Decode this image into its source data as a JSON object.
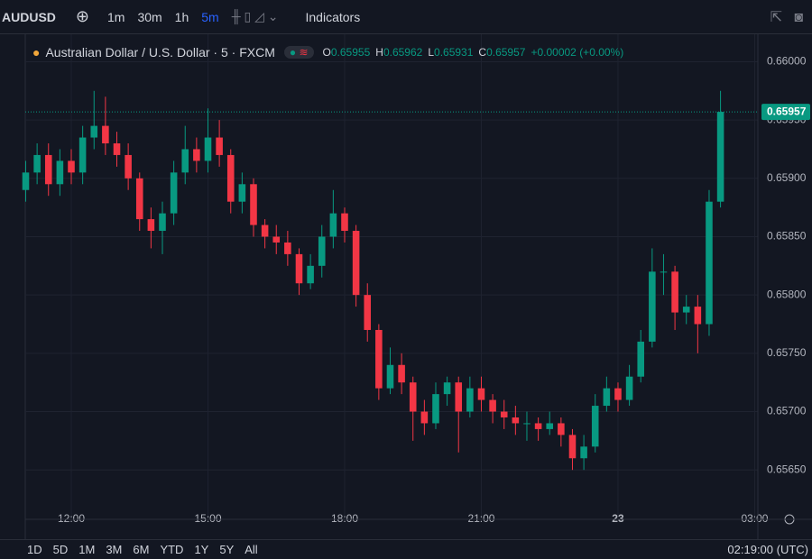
{
  "toolbar": {
    "symbol": "AUDUSD",
    "intervals": [
      "1m",
      "30m",
      "1h",
      "5m"
    ],
    "indicators": "Indicators"
  },
  "chart_data": {
    "type": "candlestick",
    "title": "Australian Dollar / U.S. Dollar · 5 · FXCM",
    "ohlc_legend": [
      {
        "label": "O",
        "value": 0.65955
      },
      {
        "label": "H",
        "value": 0.65962
      },
      {
        "label": "L",
        "value": 0.65931
      },
      {
        "label": "C",
        "value": 0.65957
      }
    ],
    "change": "+0.00002 (+0.00%)",
    "last_price": 0.65957,
    "up_color": "#089981",
    "down_color": "#f23645",
    "grid": true,
    "x": [
      11,
      11.25,
      11.5,
      11.75,
      12,
      12.25,
      12.5,
      12.75,
      13,
      13.25,
      13.5,
      13.75,
      14,
      14.25,
      14.5,
      14.75,
      15,
      15.25,
      15.5,
      15.75,
      16,
      16.25,
      16.5,
      16.75,
      17,
      17.25,
      17.5,
      17.75,
      18,
      18.25,
      18.5,
      18.75,
      19,
      19.25,
      19.5,
      19.75,
      20,
      20.25,
      20.5,
      20.75,
      21,
      21.25,
      21.5,
      21.75,
      22,
      22.25,
      22.5,
      22.75,
      23,
      23.25,
      23.5,
      23.75,
      24,
      24.25,
      24.5,
      24.75,
      25,
      25.25,
      25.5,
      25.75,
      26,
      26.25
    ],
    "open": [
      0.6589,
      0.65905,
      0.6592,
      0.65895,
      0.65915,
      0.65905,
      0.65935,
      0.65945,
      0.6593,
      0.6592,
      0.659,
      0.65865,
      0.65855,
      0.6587,
      0.65905,
      0.65925,
      0.65915,
      0.65935,
      0.6592,
      0.6588,
      0.65895,
      0.6586,
      0.6585,
      0.65845,
      0.65835,
      0.6581,
      0.65825,
      0.6585,
      0.6587,
      0.65855,
      0.658,
      0.6577,
      0.6572,
      0.6574,
      0.65725,
      0.657,
      0.6569,
      0.65715,
      0.65725,
      0.657,
      0.6572,
      0.6571,
      0.657,
      0.65695,
      0.6569,
      0.6569,
      0.65685,
      0.6569,
      0.6568,
      0.6566,
      0.6567,
      0.65705,
      0.6572,
      0.6571,
      0.6573,
      0.6576,
      0.6582,
      0.6582,
      0.65785,
      0.6579,
      0.65775,
      0.6588
    ],
    "high": [
      0.65915,
      0.6593,
      0.6593,
      0.65925,
      0.65925,
      0.65945,
      0.65975,
      0.6597,
      0.6594,
      0.6593,
      0.65905,
      0.65875,
      0.6588,
      0.65915,
      0.65945,
      0.65935,
      0.6596,
      0.6595,
      0.65925,
      0.65905,
      0.659,
      0.65865,
      0.6586,
      0.65855,
      0.6584,
      0.65835,
      0.6586,
      0.6589,
      0.65875,
      0.6586,
      0.6581,
      0.65775,
      0.65755,
      0.6575,
      0.6573,
      0.6571,
      0.65725,
      0.6573,
      0.6573,
      0.6573,
      0.6573,
      0.65715,
      0.6571,
      0.65705,
      0.657,
      0.65695,
      0.657,
      0.65695,
      0.65685,
      0.6568,
      0.65715,
      0.6573,
      0.65725,
      0.6574,
      0.6577,
      0.6584,
      0.65835,
      0.65825,
      0.658,
      0.658,
      0.6589,
      0.65975
    ],
    "low": [
      0.6588,
      0.65895,
      0.65885,
      0.65885,
      0.65895,
      0.65895,
      0.65925,
      0.6592,
      0.6591,
      0.6589,
      0.65855,
      0.6584,
      0.65835,
      0.6586,
      0.65895,
      0.65905,
      0.65905,
      0.6591,
      0.6587,
      0.6587,
      0.6585,
      0.6584,
      0.65835,
      0.65825,
      0.658,
      0.65805,
      0.65815,
      0.6584,
      0.65845,
      0.6579,
      0.6576,
      0.6571,
      0.65715,
      0.65715,
      0.65675,
      0.6568,
      0.65685,
      0.65705,
      0.65665,
      0.65695,
      0.657,
      0.6569,
      0.65685,
      0.6568,
      0.65675,
      0.65675,
      0.6568,
      0.6567,
      0.6565,
      0.6565,
      0.65665,
      0.657,
      0.657,
      0.65705,
      0.65725,
      0.65755,
      0.658,
      0.6577,
      0.65775,
      0.6575,
      0.65765,
      0.65875
    ],
    "close": [
      0.65905,
      0.6592,
      0.65895,
      0.65915,
      0.65905,
      0.65935,
      0.65945,
      0.6593,
      0.6592,
      0.659,
      0.65865,
      0.65855,
      0.6587,
      0.65905,
      0.65925,
      0.65915,
      0.65935,
      0.6592,
      0.6588,
      0.65895,
      0.6586,
      0.6585,
      0.65845,
      0.65835,
      0.6581,
      0.65825,
      0.6585,
      0.6587,
      0.65855,
      0.658,
      0.6577,
      0.6572,
      0.6574,
      0.65725,
      0.657,
      0.6569,
      0.65715,
      0.65725,
      0.657,
      0.6572,
      0.6571,
      0.657,
      0.65695,
      0.6569,
      0.6569,
      0.65685,
      0.6569,
      0.6568,
      0.6566,
      0.6567,
      0.65705,
      0.6572,
      0.6571,
      0.6573,
      0.6576,
      0.6582,
      0.6582,
      0.65785,
      0.6579,
      0.65775,
      0.6588,
      0.65957
    ],
    "xlim": [
      10.99,
      27.07
    ],
    "xticks": [
      {
        "value": 12,
        "label": "12:00"
      },
      {
        "value": 15,
        "label": "15:00"
      },
      {
        "value": 18,
        "label": "18:00"
      },
      {
        "value": 21,
        "label": "21:00"
      },
      {
        "value": 24,
        "label": "23"
      },
      {
        "value": 27,
        "label": "03:00"
      }
    ],
    "ylim": [
      0.6562,
      0.66022
    ],
    "yticks": [
      {
        "value": 0.6565,
        "label": "0.65650"
      },
      {
        "value": 0.657,
        "label": "0.65700"
      },
      {
        "value": 0.6575,
        "label": "0.65750"
      },
      {
        "value": 0.658,
        "label": "0.65800"
      },
      {
        "value": 0.6585,
        "label": "0.65850"
      },
      {
        "value": 0.659,
        "label": "0.65900"
      },
      {
        "value": 0.6595,
        "label": "0.65950"
      },
      {
        "value": 0.66,
        "label": "0.66000"
      }
    ]
  },
  "range_bar": {
    "ranges": [
      "1D",
      "5D",
      "1M",
      "3M",
      "6M",
      "YTD",
      "1Y",
      "5Y",
      "All"
    ],
    "clock": "02:19:00 (UTC)"
  }
}
